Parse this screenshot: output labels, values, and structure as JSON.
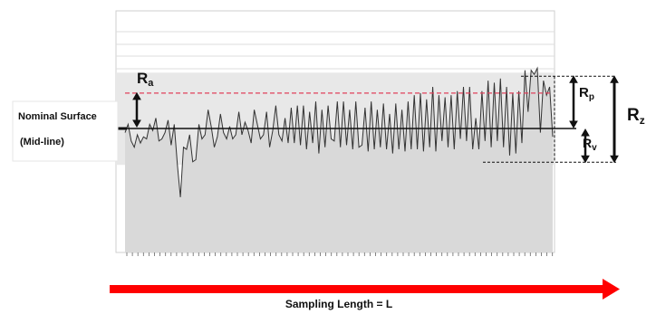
{
  "labels": {
    "nominal_surface": "Nominal Surface",
    "mid_line": "(Mid-line)",
    "ra": {
      "main": "R",
      "sub": "a"
    },
    "rp": {
      "main": "R",
      "sub": "p"
    },
    "rv": {
      "main": "R",
      "sub": "v"
    },
    "rz": {
      "main": "R",
      "sub": "z"
    },
    "sampling_length": "Sampling Length = L"
  },
  "colors": {
    "profile_fill": "#d9d9d9",
    "band_fill": "#e8e8e8",
    "peak_line": "#e0405a",
    "arrow": "#ff0000",
    "line": "#111111",
    "grid": "#dcdcdc"
  },
  "chart_data": {
    "type": "line",
    "title": "",
    "xlabel": "Sampling Length = L",
    "ylabel": "",
    "grid": true,
    "series": [
      {
        "name": "",
        "x": [
          0,
          1,
          2,
          3,
          4,
          5,
          6,
          7,
          8,
          9,
          10,
          11,
          12,
          13,
          14,
          15,
          16,
          17,
          18,
          19,
          20,
          21,
          22,
          23,
          24,
          25,
          26,
          27,
          28,
          29,
          30,
          31,
          32,
          33,
          34,
          35,
          36,
          37,
          38,
          39,
          40,
          41,
          42,
          43,
          44,
          45,
          46,
          47,
          48,
          49,
          50,
          51,
          52,
          53,
          54,
          55,
          56,
          57,
          58,
          59,
          60,
          61,
          62,
          63,
          64,
          65,
          66,
          67,
          68,
          69,
          70,
          71,
          72,
          73,
          74,
          75,
          76,
          77,
          78,
          79,
          80,
          81,
          82,
          83,
          84,
          85,
          86,
          87,
          88,
          89,
          90,
          91,
          92,
          93,
          94,
          95,
          96,
          97,
          98,
          99,
          100,
          101,
          102,
          103,
          104,
          105,
          106,
          107,
          108,
          109,
          110,
          111,
          112,
          113,
          114,
          115,
          116,
          117,
          118,
          119,
          120,
          121,
          122,
          123,
          124,
          125,
          126,
          127,
          128,
          129,
          130,
          131,
          132,
          133,
          134,
          135,
          136,
          137,
          138,
          139
        ],
        "y": [
          -0.2,
          0.2,
          -0.6,
          -0.9,
          -0.3,
          -0.7,
          -0.4,
          -0.5,
          0.2,
          -0.1,
          0.5,
          -0.6,
          -0.5,
          -0.2,
          0.4,
          -0.8,
          0.2,
          -1.7,
          -3.3,
          -0.9,
          -1.0,
          -0.3,
          -1.6,
          -1.5,
          0.2,
          -0.5,
          -0.3,
          0.9,
          0.1,
          -0.9,
          -0.4,
          0.7,
          -0.2,
          -0.5,
          0.1,
          -0.5,
          -0.3,
          0.8,
          -0.3,
          0.3,
          -0.1,
          -0.7,
          0.9,
          0.2,
          -0.5,
          -0.3,
          0.8,
          -0.9,
          -0.1,
          1.1,
          -0.3,
          -0.6,
          0.5,
          -0.7,
          1.0,
          -0.7,
          1.1,
          -0.8,
          1.1,
          -1.0,
          0.8,
          -0.7,
          1.3,
          -1.2,
          0.9,
          -0.9,
          1.1,
          -0.5,
          -0.6,
          1.3,
          -0.9,
          1.3,
          -0.8,
          0.9,
          -1.0,
          1.3,
          -0.9,
          -0.8,
          1.0,
          -1.1,
          1.3,
          -1.0,
          0.9,
          -0.9,
          1.2,
          -1.0,
          0.7,
          -1.2,
          1.2,
          -1.0,
          0.9,
          -1.1,
          1.3,
          -1.0,
          1.6,
          -1.0,
          1.7,
          -1.1,
          1.4,
          -0.9,
          2.0,
          -1.1,
          1.6,
          -0.6,
          1.5,
          -0.9,
          1.6,
          -1.0,
          1.8,
          -0.5,
          2.0,
          -0.6,
          2.0,
          -1.0,
          0.5,
          -1.0,
          1.8,
          -0.6,
          2.3,
          -0.9,
          2.2,
          -0.6,
          2.4,
          -0.9,
          2.0,
          -1.3,
          1.7,
          -1.2,
          1.8,
          -0.7,
          2.8,
          0.8,
          2.8,
          2.6,
          2.9,
          -0.2,
          2.3,
          1.6,
          2.0,
          -0.4
        ]
      }
    ],
    "reference_lines": {
      "mid_line": 0.0,
      "ra_level": 1.7,
      "rp_level": 2.9,
      "rv_level": -1.4
    }
  }
}
